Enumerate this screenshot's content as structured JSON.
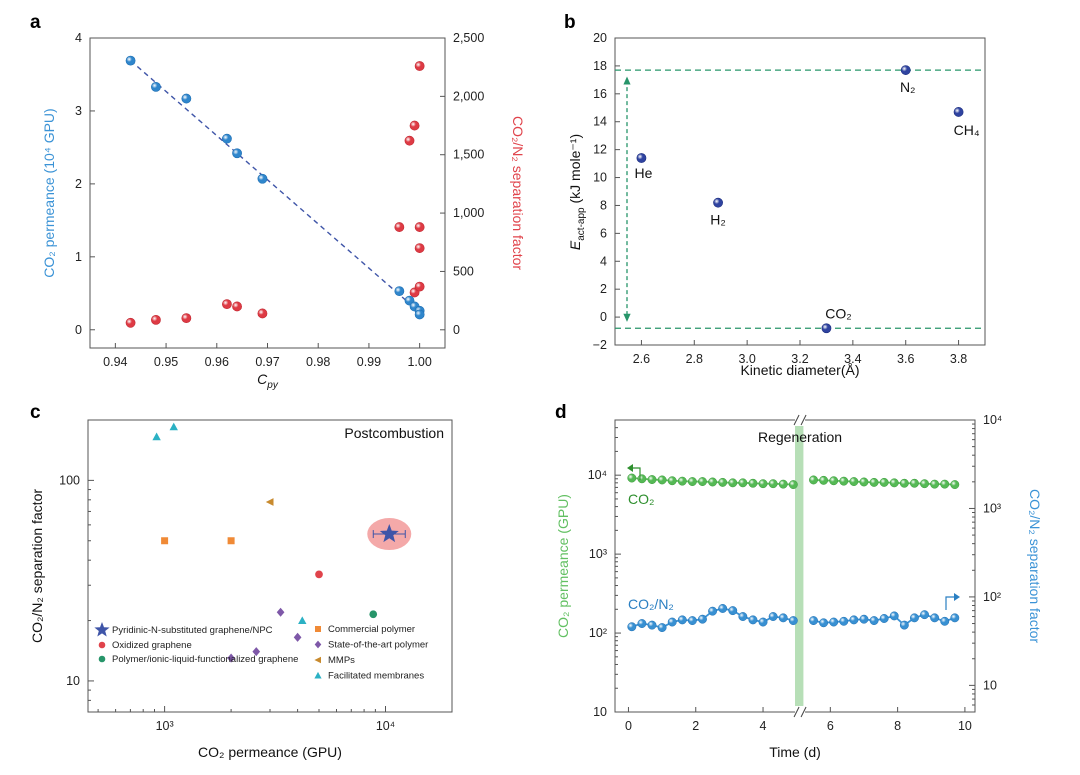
{
  "colors": {
    "blue": "#3b93d6",
    "red": "#e0434b",
    "navy": "#3f55a8",
    "green": "#27956a",
    "orange": "#f08a36",
    "purple": "#7e58a8",
    "tan": "#c88a2e",
    "teal": "#2bb1c4",
    "lightgreen": "#62c062",
    "ltblue": "#3b93d6"
  },
  "chart_data": [
    {
      "panel": "a",
      "type": "scatter",
      "xlabel_main": "C",
      "xlabel_sub": "py",
      "ylabel_left": "CO₂ permeance  (10⁴ GPU)",
      "ylabel_right": "CO₂/N₂ separation factor",
      "xlim": [
        0.935,
        1.005
      ],
      "ylim_left": [
        -0.25,
        4.0
      ],
      "ylim_right": [
        -156,
        2500
      ],
      "x_ticks": [
        "0.94",
        "0.95",
        "0.96",
        "0.97",
        "0.98",
        "0.99",
        "1.00"
      ],
      "y_left_ticks": [
        "0",
        "1",
        "2",
        "3",
        "4"
      ],
      "y_right_ticks": [
        "0",
        "500",
        "1,000",
        "1,500",
        "2,000",
        "2,500"
      ],
      "permeance": [
        [
          0.943,
          3.69
        ],
        [
          0.948,
          3.33
        ],
        [
          0.954,
          3.17
        ],
        [
          0.962,
          2.62
        ],
        [
          0.964,
          2.42
        ],
        [
          0.969,
          2.07
        ],
        [
          0.996,
          0.53
        ],
        [
          0.998,
          0.4
        ],
        [
          0.999,
          0.32
        ],
        [
          1.0,
          0.26
        ],
        [
          1.0,
          0.21
        ]
      ],
      "fit_line": [
        [
          0.943,
          3.69
        ],
        [
          1.0,
          0.24
        ]
      ],
      "separation_factor": [
        [
          0.943,
          60
        ],
        [
          0.948,
          85
        ],
        [
          0.954,
          100
        ],
        [
          0.962,
          220
        ],
        [
          0.964,
          200
        ],
        [
          0.969,
          140
        ],
        [
          0.996,
          880
        ],
        [
          0.998,
          1620
        ],
        [
          0.999,
          1750
        ],
        [
          1.0,
          2260
        ],
        [
          0.999,
          320
        ],
        [
          1.0,
          370
        ],
        [
          1.0,
          700
        ],
        [
          1.0,
          880
        ]
      ]
    },
    {
      "panel": "b",
      "type": "scatter",
      "xlabel": "Kinetic diameter(Å)",
      "ylabel_main": "E",
      "ylabel_sub": "act-app",
      "ylabel_unit": " (kJ mole⁻¹)",
      "xlim": [
        2.5,
        3.9
      ],
      "ylim": [
        -2,
        20
      ],
      "x_ticks": [
        "2.6",
        "2.8",
        "3.0",
        "3.2",
        "3.4",
        "3.6",
        "3.8"
      ],
      "y_ticks": [
        "−2",
        "0",
        "2",
        "4",
        "6",
        "8",
        "10",
        "12",
        "14",
        "16",
        "18",
        "20"
      ],
      "points": [
        {
          "label": "He",
          "x": 2.6,
          "y": 11.4
        },
        {
          "label": "H₂",
          "x": 2.89,
          "y": 8.2
        },
        {
          "label": "CO₂",
          "x": 3.3,
          "y": -0.8
        },
        {
          "label": "N₂",
          "x": 3.6,
          "y": 17.7
        },
        {
          "label": "CH₄",
          "x": 3.8,
          "y": 14.7
        }
      ],
      "reference_lines": [
        17.7,
        -0.8
      ]
    },
    {
      "panel": "c",
      "type": "scatter",
      "title": "Postcombustion",
      "xlabel": "CO₂ permeance (GPU)",
      "ylabel": "CO₂/N₂ separation factor",
      "xscale": "log",
      "yscale": "log",
      "xlim": [
        450,
        20000
      ],
      "ylim": [
        7,
        200
      ],
      "x_ticks": [
        "10³",
        "10⁴"
      ],
      "y_ticks": [
        "10",
        "100"
      ],
      "series": [
        {
          "name": "Pyridinic-N-substituted graphene/NPC",
          "marker": "star",
          "color": "#3f55a8",
          "points": [
            [
              10400,
              54
            ]
          ]
        },
        {
          "name": "Oxidized graphene",
          "marker": "circle",
          "color": "#e0434b",
          "points": [
            [
              5000,
              34
            ]
          ]
        },
        {
          "name": "Polymer/ionic-liquid-functionalized graphene",
          "marker": "circle",
          "color": "#27956a",
          "points": [
            [
              8800,
              21.5
            ]
          ]
        },
        {
          "name": "Commercial polymer",
          "marker": "square",
          "color": "#f08a36",
          "points": [
            [
              1000,
              50
            ],
            [
              2000,
              50
            ]
          ]
        },
        {
          "name": "State-of-the-art polymer",
          "marker": "diamond",
          "color": "#7e58a8",
          "points": [
            [
              2000,
              13
            ],
            [
              2600,
              14
            ],
            [
              3350,
              22
            ],
            [
              4000,
              16.5
            ]
          ]
        },
        {
          "name": "MMPs",
          "marker": "triangle-left",
          "color": "#c88a2e",
          "points": [
            [
              3000,
              78
            ]
          ]
        },
        {
          "name": "Facilitated membranes",
          "marker": "triangle",
          "color": "#2bb1c4",
          "points": [
            [
              920,
              165
            ],
            [
              1100,
              185
            ],
            [
              4200,
              20
            ]
          ]
        }
      ]
    },
    {
      "panel": "d",
      "type": "line",
      "annotation": "Regeneration",
      "xlabel": "Time (d)",
      "ylabel_left": "CO₂ permeance (GPU)",
      "ylabel_right": "CO₂/N₂ separation factor",
      "xlim": [
        -0.4,
        10.3
      ],
      "ylim_left": [
        10,
        50000
      ],
      "ylim_right": [
        5,
        10000
      ],
      "x_ticks": [
        "0",
        "2",
        "4",
        "6",
        "8",
        "10"
      ],
      "y_left_ticks": [
        "10",
        "10²",
        "10³",
        "10⁴"
      ],
      "y_right_ticks": [
        "10",
        "10²",
        "10³",
        "10⁴"
      ],
      "series": [
        {
          "name": "CO₂",
          "axis": "left",
          "color": "#62c062",
          "x": [
            0.1,
            0.4,
            0.7,
            1.0,
            1.3,
            1.6,
            1.9,
            2.2,
            2.5,
            2.8,
            3.1,
            3.4,
            3.7,
            4.0,
            4.3,
            4.6,
            4.9,
            5.5,
            5.8,
            6.1,
            6.4,
            6.7,
            7.0,
            7.3,
            7.6,
            7.9,
            8.2,
            8.5,
            8.8,
            9.1,
            9.4,
            9.7
          ],
          "y": [
            9200,
            9000,
            8800,
            8700,
            8500,
            8400,
            8300,
            8300,
            8200,
            8100,
            8000,
            8000,
            7900,
            7800,
            7800,
            7700,
            7600,
            8700,
            8600,
            8500,
            8400,
            8300,
            8200,
            8100,
            8100,
            8000,
            7900,
            7900,
            7800,
            7700,
            7700,
            7600
          ]
        },
        {
          "name": "CO₂/N₂",
          "axis": "right",
          "color": "#3b93d6",
          "x": [
            0.1,
            0.4,
            0.7,
            1.0,
            1.3,
            1.6,
            1.9,
            2.2,
            2.5,
            2.8,
            3.1,
            3.4,
            3.7,
            4.0,
            4.3,
            4.6,
            4.9,
            5.5,
            5.8,
            6.1,
            6.4,
            6.7,
            7.0,
            7.3,
            7.6,
            7.9,
            8.2,
            8.5,
            8.8,
            9.1,
            9.4,
            9.7
          ],
          "y": [
            46,
            50,
            48,
            45,
            52,
            55,
            54,
            56,
            69,
            74,
            70,
            60,
            55,
            52,
            60,
            58,
            54,
            54,
            51,
            52,
            53,
            55,
            56,
            54,
            57,
            61,
            48,
            58,
            63,
            58,
            53,
            58
          ]
        }
      ],
      "series_labels": [
        "CO₂",
        "CO₂/N₂"
      ]
    }
  ]
}
